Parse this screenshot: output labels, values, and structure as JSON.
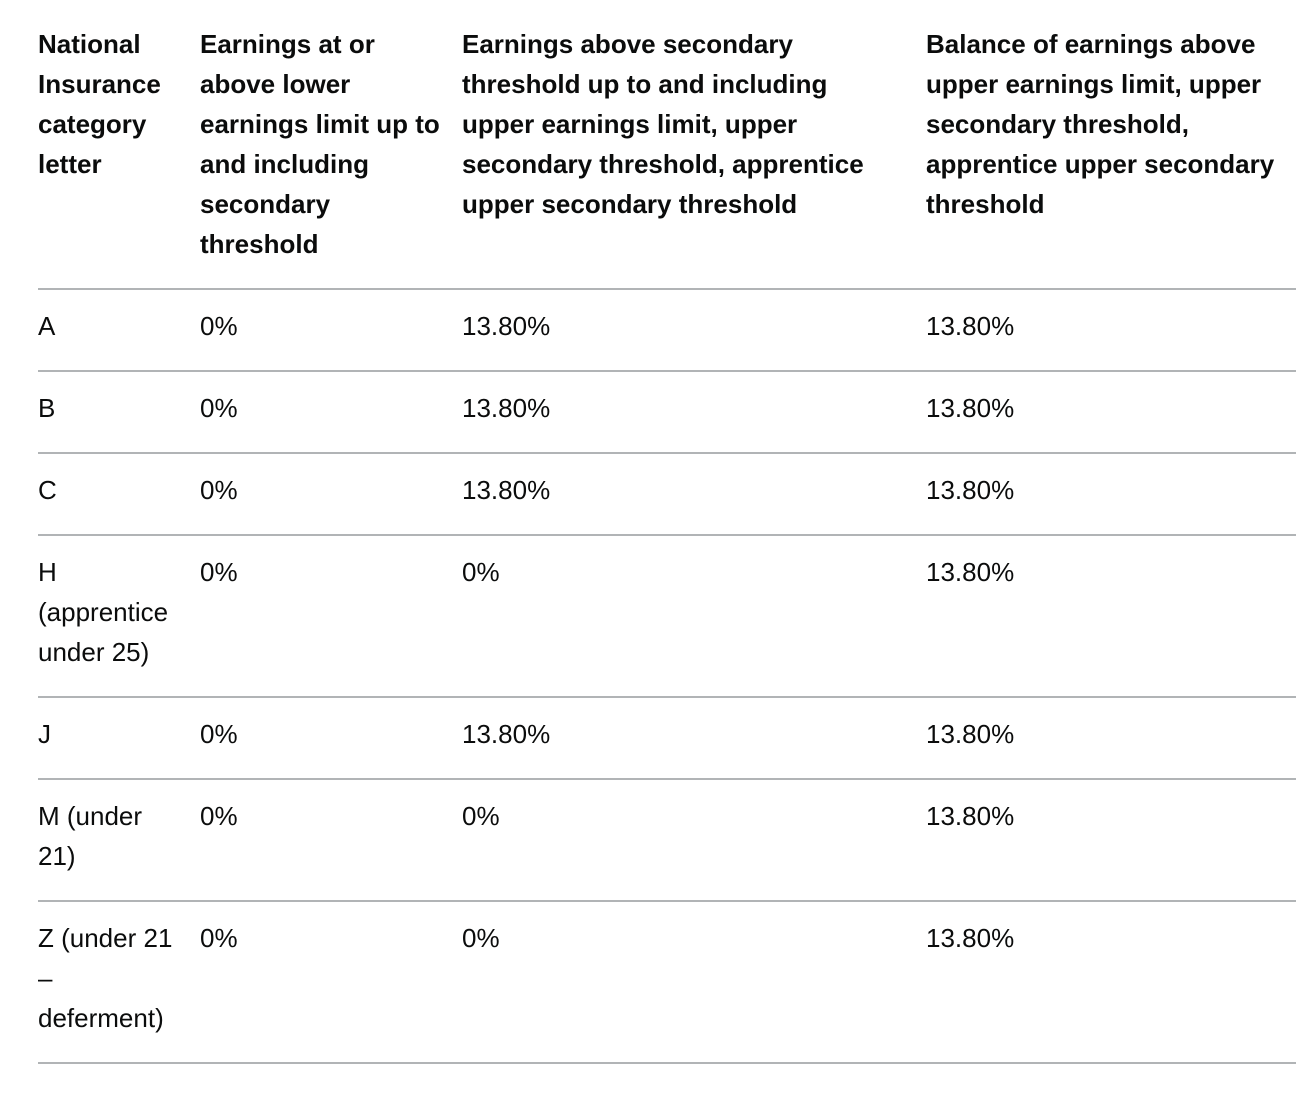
{
  "table": {
    "headers": [
      "National Insurance category letter",
      "Earnings at or above lower earnings limit up to and including secondary threshold",
      "Earnings above secondary threshold up to and including upper earnings limit, upper secondary threshold, apprentice upper secondary threshold",
      "Balance of earnings above upper earnings limit, upper secondary threshold, apprentice upper secondary threshold"
    ],
    "rows": [
      [
        "A",
        "0%",
        "13.80%",
        "13.80%"
      ],
      [
        "B",
        "0%",
        "13.80%",
        "13.80%"
      ],
      [
        "C",
        "0%",
        "13.80%",
        "13.80%"
      ],
      [
        "H (apprentice under 25)",
        "0%",
        "0%",
        "13.80%"
      ],
      [
        "J",
        "0%",
        "13.80%",
        "13.80%"
      ],
      [
        "M (under 21)",
        "0%",
        "0%",
        "13.80%"
      ],
      [
        "Z (under 21 – deferment)",
        "0%",
        "0%",
        "13.80%"
      ]
    ]
  }
}
